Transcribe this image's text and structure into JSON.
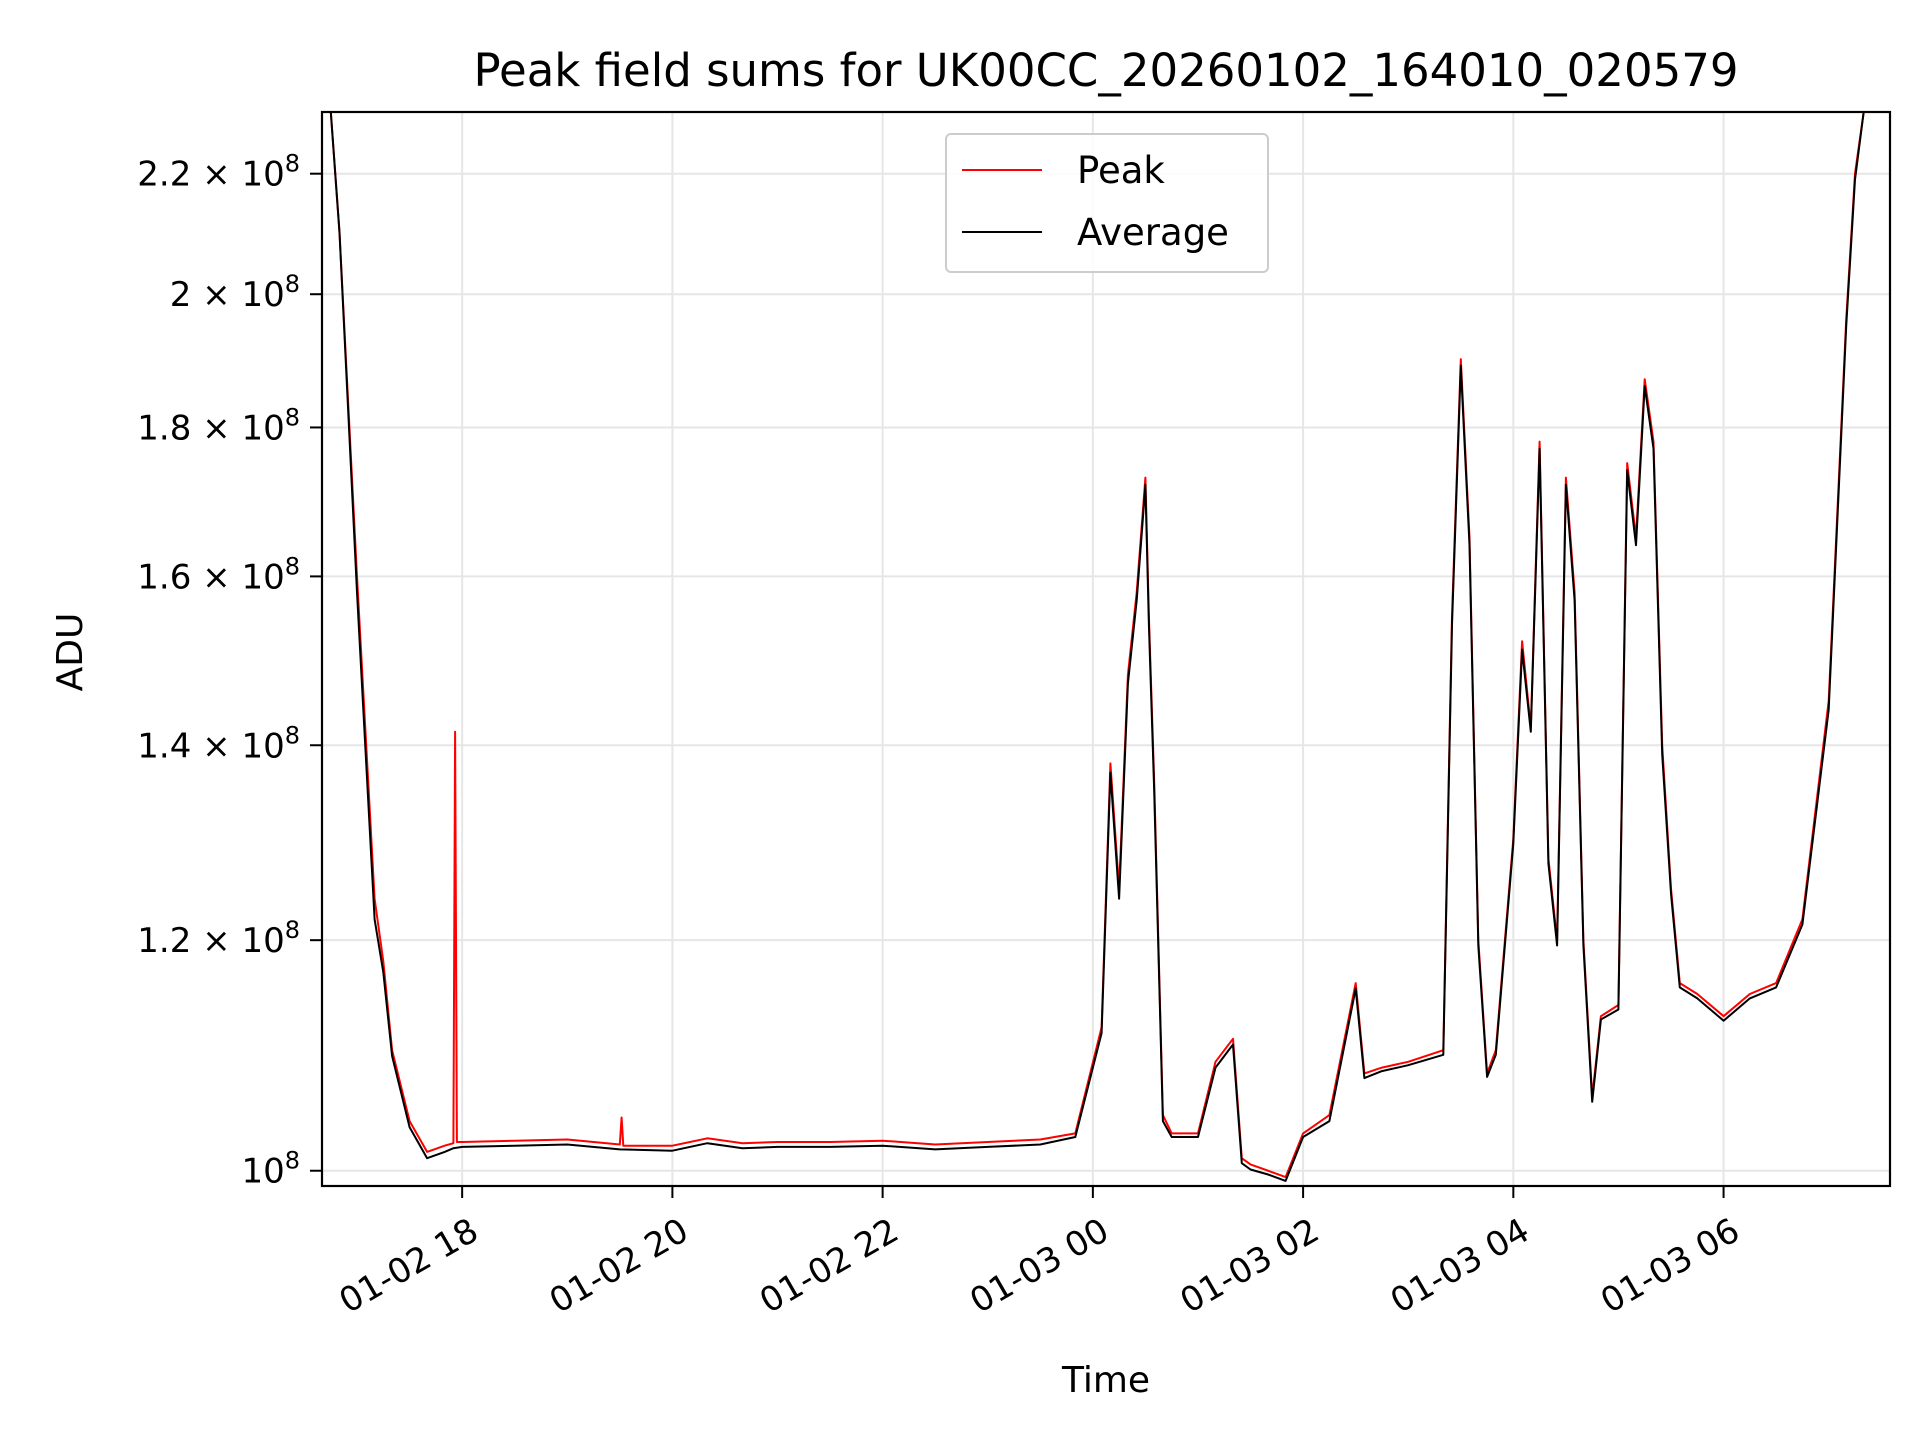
{
  "chart_data": {
    "type": "line",
    "title": "Peak field sums for UK00CC_20260102_164010_020579",
    "xlabel": "Time",
    "ylabel": "ADU",
    "y_scale": "log",
    "xlim": [
      "2026-01-02T16:40",
      "2026-01-03T07:35"
    ],
    "ylim": [
      98800000,
      231000000
    ],
    "grid": true,
    "legend": {
      "placement": "top-center"
    },
    "x_ticks": [
      {
        "label": "01-02 18",
        "value": "2026-01-02T18:00"
      },
      {
        "label": "01-02 20",
        "value": "2026-01-02T20:00"
      },
      {
        "label": "01-02 22",
        "value": "2026-01-02T22:00"
      },
      {
        "label": "01-03 00",
        "value": "2026-01-03T00:00"
      },
      {
        "label": "01-03 02",
        "value": "2026-01-03T02:00"
      },
      {
        "label": "01-03 04",
        "value": "2026-01-03T04:00"
      },
      {
        "label": "01-03 06",
        "value": "2026-01-03T06:00"
      }
    ],
    "y_ticks": [
      {
        "mantissa": "10",
        "exp": "8",
        "value": 100000000
      },
      {
        "mantissa": "1.2 × 10",
        "exp": "8",
        "value": 120000000
      },
      {
        "mantissa": "1.4 × 10",
        "exp": "8",
        "value": 140000000
      },
      {
        "mantissa": "1.6 × 10",
        "exp": "8",
        "value": 160000000
      },
      {
        "mantissa": "1.8 × 10",
        "exp": "8",
        "value": 180000000
      },
      {
        "mantissa": "2 × 10",
        "exp": "8",
        "value": 200000000
      },
      {
        "mantissa": "2.2 × 10",
        "exp": "8",
        "value": 220000000
      }
    ],
    "series": [
      {
        "name": "Peak",
        "color": "#ff0000",
        "x": [
          "2026-01-02T16:45",
          "2026-01-02T16:50",
          "2026-01-02T17:00",
          "2026-01-02T17:10",
          "2026-01-02T17:15",
          "2026-01-02T17:20",
          "2026-01-02T17:30",
          "2026-01-02T17:40",
          "2026-01-02T17:50",
          "2026-01-02T17:55",
          "2026-01-02T17:56",
          "2026-01-02T17:57",
          "2026-01-02T18:00",
          "2026-01-02T18:30",
          "2026-01-02T19:00",
          "2026-01-02T19:30",
          "2026-01-02T19:31",
          "2026-01-02T19:32",
          "2026-01-02T20:00",
          "2026-01-02T20:20",
          "2026-01-02T20:40",
          "2026-01-02T21:00",
          "2026-01-02T21:30",
          "2026-01-02T22:00",
          "2026-01-02T22:30",
          "2026-01-02T23:00",
          "2026-01-02T23:30",
          "2026-01-02T23:50",
          "2026-01-03T00:05",
          "2026-01-03T00:10",
          "2026-01-03T00:15",
          "2026-01-03T00:20",
          "2026-01-03T00:25",
          "2026-01-03T00:30",
          "2026-01-03T00:32",
          "2026-01-03T00:35",
          "2026-01-03T00:40",
          "2026-01-03T00:45",
          "2026-01-03T01:00",
          "2026-01-03T01:10",
          "2026-01-03T01:15",
          "2026-01-03T01:20",
          "2026-01-03T01:25",
          "2026-01-03T01:30",
          "2026-01-03T01:40",
          "2026-01-03T01:50",
          "2026-01-03T02:00",
          "2026-01-03T02:15",
          "2026-01-03T02:30",
          "2026-01-03T02:35",
          "2026-01-03T02:45",
          "2026-01-03T03:00",
          "2026-01-03T03:20",
          "2026-01-03T03:25",
          "2026-01-03T03:30",
          "2026-01-03T03:35",
          "2026-01-03T03:40",
          "2026-01-03T03:45",
          "2026-01-03T03:50",
          "2026-01-03T04:00",
          "2026-01-03T04:05",
          "2026-01-03T04:10",
          "2026-01-03T04:15",
          "2026-01-03T04:20",
          "2026-01-03T04:25",
          "2026-01-03T04:30",
          "2026-01-03T04:35",
          "2026-01-03T04:40",
          "2026-01-03T04:45",
          "2026-01-03T04:50",
          "2026-01-03T05:00",
          "2026-01-03T05:05",
          "2026-01-03T05:10",
          "2026-01-03T05:15",
          "2026-01-03T05:20",
          "2026-01-03T05:25",
          "2026-01-03T05:30",
          "2026-01-03T05:35",
          "2026-01-03T05:45",
          "2026-01-03T06:00",
          "2026-01-03T06:15",
          "2026-01-03T06:30",
          "2026-01-03T06:45",
          "2026-01-03T07:00",
          "2026-01-03T07:10",
          "2026-01-03T07:15",
          "2026-01-03T07:20"
        ],
        "y": [
          231000000,
          210000000,
          160000000,
          124000000,
          118000000,
          110000000,
          104000000,
          101500000,
          102000000,
          102200000,
          141500000,
          102300000,
          102300000,
          102400000,
          102500000,
          102100000,
          104300000,
          102000000,
          102000000,
          102600000,
          102200000,
          102300000,
          102300000,
          102400000,
          102100000,
          102300000,
          102500000,
          103000000,
          112000000,
          138000000,
          125000000,
          148000000,
          158000000,
          173000000,
          155000000,
          136000000,
          104500000,
          103000000,
          103000000,
          109000000,
          110000000,
          111000000,
          101000000,
          100500000,
          100000000,
          99500000,
          103000000,
          104500000,
          116000000,
          108000000,
          108500000,
          109000000,
          110000000,
          155000000,
          190000000,
          165000000,
          120000000,
          108000000,
          110000000,
          130000000,
          152000000,
          142000000,
          178000000,
          128000000,
          120000000,
          173000000,
          158000000,
          120000000,
          106000000,
          113000000,
          114000000,
          175000000,
          165000000,
          187000000,
          178000000,
          140000000,
          125000000,
          116000000,
          115000000,
          113000000,
          115000000,
          116000000,
          122000000,
          145000000,
          196000000,
          220000000,
          231000000
        ]
      },
      {
        "name": "Average",
        "color": "#000000",
        "x": [
          "2026-01-02T16:45",
          "2026-01-02T16:50",
          "2026-01-02T17:00",
          "2026-01-02T17:10",
          "2026-01-02T17:15",
          "2026-01-02T17:20",
          "2026-01-02T17:30",
          "2026-01-02T17:40",
          "2026-01-02T17:50",
          "2026-01-02T17:55",
          "2026-01-02T18:00",
          "2026-01-02T18:30",
          "2026-01-02T19:00",
          "2026-01-02T19:30",
          "2026-01-02T20:00",
          "2026-01-02T20:20",
          "2026-01-02T20:40",
          "2026-01-02T21:00",
          "2026-01-02T21:30",
          "2026-01-02T22:00",
          "2026-01-02T22:30",
          "2026-01-02T23:00",
          "2026-01-02T23:30",
          "2026-01-02T23:50",
          "2026-01-03T00:05",
          "2026-01-03T00:10",
          "2026-01-03T00:15",
          "2026-01-03T00:20",
          "2026-01-03T00:25",
          "2026-01-03T00:30",
          "2026-01-03T00:32",
          "2026-01-03T00:35",
          "2026-01-03T00:40",
          "2026-01-03T00:45",
          "2026-01-03T01:00",
          "2026-01-03T01:10",
          "2026-01-03T01:15",
          "2026-01-03T01:20",
          "2026-01-03T01:25",
          "2026-01-03T01:30",
          "2026-01-03T01:40",
          "2026-01-03T01:50",
          "2026-01-03T02:00",
          "2026-01-03T02:15",
          "2026-01-03T02:30",
          "2026-01-03T02:35",
          "2026-01-03T02:45",
          "2026-01-03T03:00",
          "2026-01-03T03:20",
          "2026-01-03T03:25",
          "2026-01-03T03:30",
          "2026-01-03T03:35",
          "2026-01-03T03:40",
          "2026-01-03T03:45",
          "2026-01-03T03:50",
          "2026-01-03T04:00",
          "2026-01-03T04:05",
          "2026-01-03T04:10",
          "2026-01-03T04:15",
          "2026-01-03T04:20",
          "2026-01-03T04:25",
          "2026-01-03T04:30",
          "2026-01-03T04:35",
          "2026-01-03T04:40",
          "2026-01-03T04:45",
          "2026-01-03T04:50",
          "2026-01-03T05:00",
          "2026-01-03T05:05",
          "2026-01-03T05:10",
          "2026-01-03T05:15",
          "2026-01-03T05:20",
          "2026-01-03T05:25",
          "2026-01-03T05:30",
          "2026-01-03T05:35",
          "2026-01-03T05:45",
          "2026-01-03T06:00",
          "2026-01-03T06:15",
          "2026-01-03T06:30",
          "2026-01-03T06:45",
          "2026-01-03T07:00",
          "2026-01-03T07:10",
          "2026-01-03T07:15",
          "2026-01-03T07:20"
        ],
        "y": [
          231000000,
          210000000,
          158000000,
          122000000,
          117000000,
          109500000,
          103500000,
          101000000,
          101500000,
          101800000,
          101900000,
          102000000,
          102100000,
          101700000,
          101600000,
          102200000,
          101800000,
          101900000,
          101900000,
          102000000,
          101700000,
          101900000,
          102100000,
          102700000,
          111500000,
          137000000,
          124000000,
          147000000,
          157000000,
          172000000,
          154000000,
          135000000,
          104000000,
          102700000,
          102700000,
          108500000,
          109500000,
          110500000,
          100600000,
          100100000,
          99700000,
          99200000,
          102700000,
          104000000,
          115500000,
          107600000,
          108200000,
          108700000,
          109600000,
          154000000,
          189000000,
          164000000,
          119500000,
          107700000,
          109600000,
          129500000,
          151000000,
          141500000,
          177000000,
          127500000,
          119500000,
          172000000,
          157000000,
          119500000,
          105600000,
          112700000,
          113600000,
          174000000,
          164000000,
          186000000,
          177000000,
          139000000,
          124500000,
          115600000,
          114600000,
          112600000,
          114600000,
          115600000,
          121500000,
          144000000,
          195000000,
          219000000,
          231000000
        ]
      }
    ]
  }
}
